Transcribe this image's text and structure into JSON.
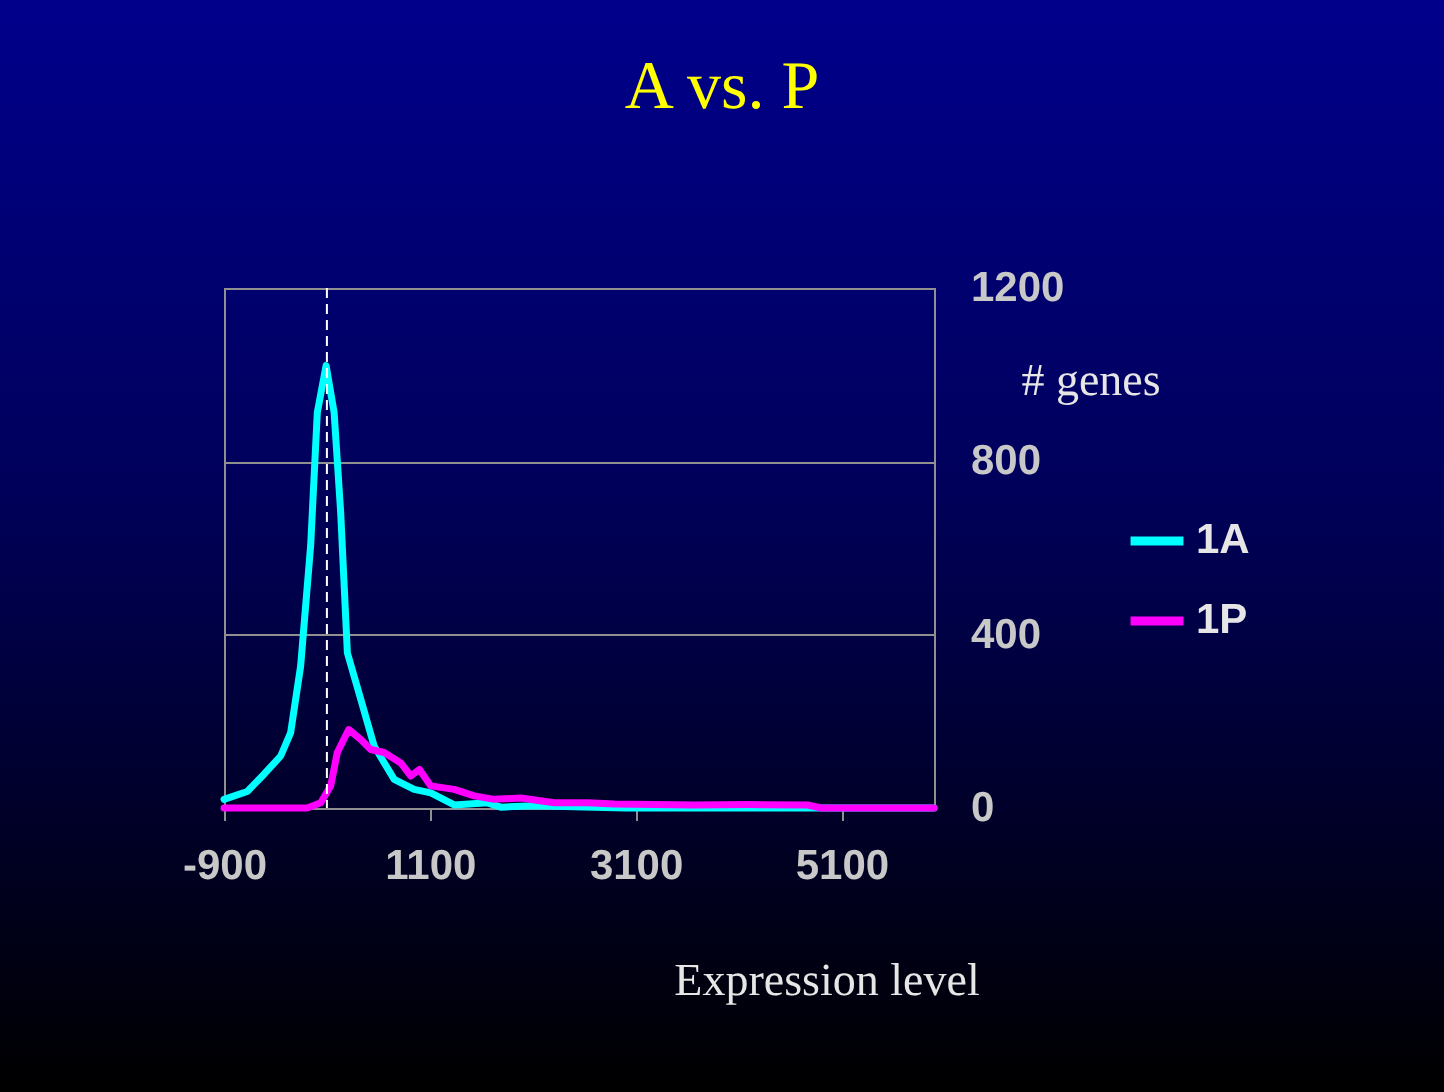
{
  "chart_data": {
    "type": "line",
    "title": "A vs. P",
    "xlabel": "Expression level",
    "ylabel": "# genes",
    "xlim": [
      -900,
      6000
    ],
    "xticks": [
      -900,
      1100,
      3100,
      5100
    ],
    "ylim": [
      0,
      1200
    ],
    "yticks": [
      0,
      400,
      800,
      1200
    ],
    "grid": "y",
    "legend": "right",
    "marker": "none",
    "line_style": "solid",
    "ref_lines": [
      {
        "axis": "x",
        "value": 100,
        "color": "#ffffff",
        "line_style": "dashed"
      }
    ],
    "series": [
      {
        "name": "1A",
        "color": "#00ffff",
        "x": [
          -900,
          -674,
          -511,
          -349,
          -252,
          -155,
          -58,
          7,
          92,
          170,
          234,
          299,
          429,
          559,
          754,
          948,
          1110,
          1337,
          1660,
          1790,
          2115,
          2500,
          3000,
          4000,
          5000,
          6000
        ],
        "values": [
          20,
          38,
          78,
          120,
          174,
          328,
          605,
          913,
          1021,
          913,
          682,
          358,
          251,
          143,
          66,
          43,
          35,
          7,
          12,
          2,
          5,
          3,
          0,
          0,
          0,
          0
        ]
      },
      {
        "name": "1P",
        "color": "#ff00ff",
        "x": [
          -900,
          -91,
          40,
          137,
          201,
          312,
          429,
          526,
          656,
          818,
          915,
          999,
          1110,
          1337,
          1532,
          1726,
          1985,
          2310,
          2633,
          2894,
          3672,
          4190,
          4773,
          4904,
          6000
        ],
        "values": [
          0,
          0,
          12,
          51,
          128,
          181,
          158,
          135,
          128,
          104,
          74,
          89,
          51,
          43,
          28,
          20,
          23,
          12,
          12,
          9,
          7,
          8,
          7,
          0,
          0
        ]
      }
    ]
  }
}
